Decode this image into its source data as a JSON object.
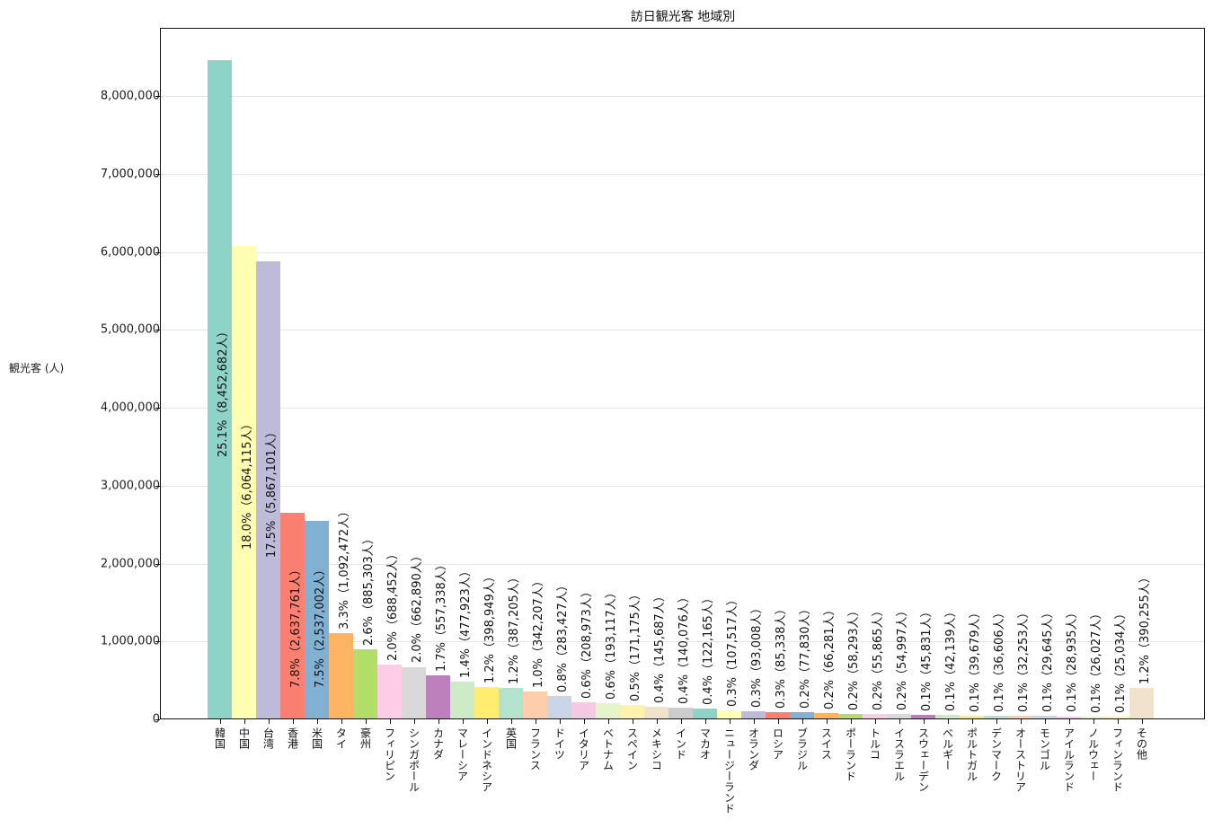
{
  "chart_data": {
    "type": "bar",
    "title": "訪日観光客 地域別",
    "xlabel": "",
    "ylabel": "観光客 (人)",
    "ylim": [
      0,
      8800000
    ],
    "grid": "y-only",
    "legend": "none",
    "yticks": [
      "0",
      "1,000,000",
      "2,000,000",
      "3,000,000",
      "4,000,000",
      "5,000,000",
      "6,000,000",
      "7,000,000",
      "8,000,000"
    ],
    "categories": [
      "韓国",
      "中国",
      "台湾",
      "香港",
      "米国",
      "タイ",
      "豪州",
      "フィリピン",
      "シンガポール",
      "カナダ",
      "マレーシア",
      "インドネシア",
      "英国",
      "フランス",
      "ドイツ",
      "イタリア",
      "ベトナム",
      "スペイン",
      "メキシコ",
      "インド",
      "マカオ",
      "ニュージーランド",
      "オランダ",
      "ロシア",
      "ブラジル",
      "スイス",
      "ポーランド",
      "トルコ",
      "イスラエル",
      "スウェーデン",
      "ベルギー",
      "ポルトガル",
      "デンマーク",
      "オーストリア",
      "モンゴル",
      "アイルランド",
      "ノルウェー",
      "フィンランド",
      "その他"
    ],
    "values": [
      8452682,
      6064115,
      5867101,
      2637761,
      2537002,
      1092472,
      885303,
      688452,
      662890,
      557338,
      477923,
      398949,
      387205,
      342207,
      283427,
      208973,
      193117,
      171175,
      145687,
      140076,
      122165,
      107517,
      93008,
      85338,
      77830,
      66281,
      58293,
      55865,
      54997,
      45831,
      42139,
      39679,
      36606,
      32253,
      29645,
      28935,
      26027,
      25034,
      390255
    ],
    "labels": [
      "25.1%（8,452,682人）",
      "18.0%（6,064,115人）",
      "17.5%（5,867,101人）",
      "7.8%（2,637,761人）",
      "7.5%（2,537,002人）",
      "3.3%（1,092,472人）",
      "2.6%（885,303人）",
      "2.0%（688,452人）",
      "2.0%（662,890人）",
      "1.7%（557,338人）",
      "1.4%（477,923人）",
      "1.2%（398,949人）",
      "1.2%（387,205人）",
      "1.0%（342,207人）",
      "0.8%（283,427人）",
      "0.6%（208,973人）",
      "0.6%（193,117人）",
      "0.5%（171,175人）",
      "0.4%（145,687人）",
      "0.4%（140,076人）",
      "0.4%（122,165人）",
      "0.3%（107,517人）",
      "0.3%（93,008人）",
      "0.3%（85,338人）",
      "0.2%（77,830人）",
      "0.2%（66,281人）",
      "0.2%（58,293人）",
      "0.2%（55,865人）",
      "0.2%（54,997人）",
      "0.1%（45,831人）",
      "0.1%（42,139人）",
      "0.1%（39,679人）",
      "0.1%（36,606人）",
      "0.1%（32,253人）",
      "0.1%（29,645人）",
      "0.1%（28,935人）",
      "0.1%（26,027人）",
      "0.1%（25,034人）",
      "1.2%（390,255人）"
    ],
    "colors": [
      "#8dd3c7",
      "#ffffb3",
      "#bebada",
      "#fb8072",
      "#80b1d3",
      "#fdb462",
      "#b3de69",
      "#fccde5",
      "#d9d9d9",
      "#bc80bd",
      "#ccebc5",
      "#ffed6f",
      "#b3e2cd",
      "#fdcdac",
      "#cbd5e8",
      "#f4cae4",
      "#e6f5c9",
      "#fff2ae",
      "#f1e2cc",
      "#cccccc",
      "#8dd3c7",
      "#ffffb3",
      "#bebada",
      "#fb8072",
      "#80b1d3",
      "#fdb462",
      "#b3de69",
      "#fccde5",
      "#d9d9d9",
      "#bc80bd",
      "#ccebc5",
      "#ffed6f",
      "#b3e2cd",
      "#fdcdac",
      "#cbd5e8",
      "#f4cae4",
      "#e6f5c9",
      "#fff2ae",
      "#f1e2cc"
    ]
  }
}
